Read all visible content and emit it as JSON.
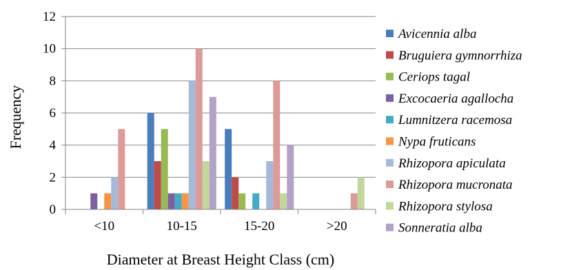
{
  "chart_data": {
    "type": "bar",
    "title": "",
    "xlabel": "Diameter at Breast Height Class (cm)",
    "ylabel": "Frequency",
    "ylim": [
      0,
      12
    ],
    "yticks": [
      0,
      2,
      4,
      6,
      8,
      10,
      12
    ],
    "grid": true,
    "legend_position": "right",
    "categories": [
      "<10",
      "10-15",
      "15-20",
      ">20"
    ],
    "series": [
      {
        "name": "Avicennia alba",
        "color": "#4a7ebb",
        "values": [
          0,
          6,
          5,
          0
        ]
      },
      {
        "name": "Bruguiera gymnorrhiza",
        "color": "#be4b48",
        "values": [
          0,
          3,
          2,
          0
        ]
      },
      {
        "name": "Ceriops tagal",
        "color": "#98b954",
        "values": [
          0,
          5,
          1,
          0
        ]
      },
      {
        "name": "Excocaeria agallocha",
        "color": "#7d60a0",
        "values": [
          1,
          1,
          0,
          0
        ]
      },
      {
        "name": "Lumnitzera racemosa",
        "color": "#46aac4",
        "values": [
          0,
          1,
          1,
          0
        ]
      },
      {
        "name": "Nypa fruticans",
        "color": "#f69546",
        "values": [
          1,
          1,
          0,
          0
        ]
      },
      {
        "name": "Rhizopora apiculata",
        "color": "#a5b9d8",
        "values": [
          2,
          8,
          3,
          0
        ]
      },
      {
        "name": "Rhizopora mucronata",
        "color": "#dc9a99",
        "values": [
          5,
          10,
          8,
          1
        ]
      },
      {
        "name": "Rhizopora stylosa",
        "color": "#c3d69b",
        "values": [
          0,
          3,
          1,
          2
        ]
      },
      {
        "name": "Sonneratia alba",
        "color": "#b2a2c7",
        "values": [
          0,
          7,
          4,
          0
        ]
      }
    ]
  }
}
